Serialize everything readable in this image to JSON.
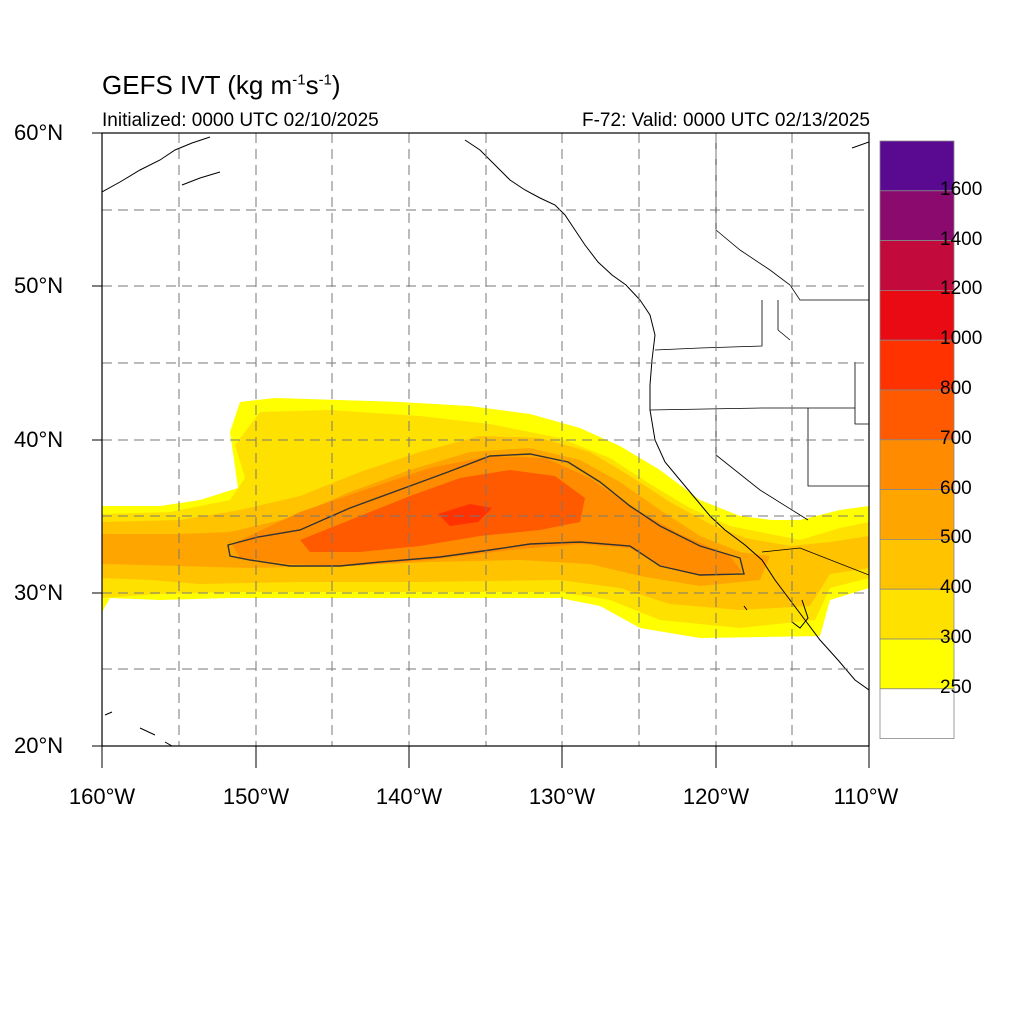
{
  "title": {
    "main": "GEFS IVT (kg m",
    "sup1": "-1",
    "mid": "s",
    "sup2": "-1",
    "end": ")"
  },
  "initialized": "Initialized: 0000 UTC 02/10/2025",
  "valid": "F-72: Valid: 0000 UTC 02/13/2025",
  "lat_labels": [
    "60°N",
    "50°N",
    "40°N",
    "30°N",
    "20°N"
  ],
  "lon_labels": [
    "160°W",
    "150°W",
    "140°W",
    "130°W",
    "120°W",
    "110°W"
  ],
  "colorbar": {
    "labels": [
      "1600",
      "1400",
      "1200",
      "1000",
      "800",
      "700",
      "600",
      "500",
      "400",
      "300",
      "250"
    ],
    "colors": [
      "#5a0a91",
      "#8b0a6e",
      "#c20a3c",
      "#ea0a14",
      "#ff3200",
      "#ff5a00",
      "#ff8c00",
      "#ffa500",
      "#ffc300",
      "#ffe100",
      "#ffff00",
      "#ffffff"
    ]
  },
  "map": {
    "lon_range": [
      -160,
      -110
    ],
    "lat_range": [
      20,
      60
    ],
    "grid_dashed": true
  }
}
